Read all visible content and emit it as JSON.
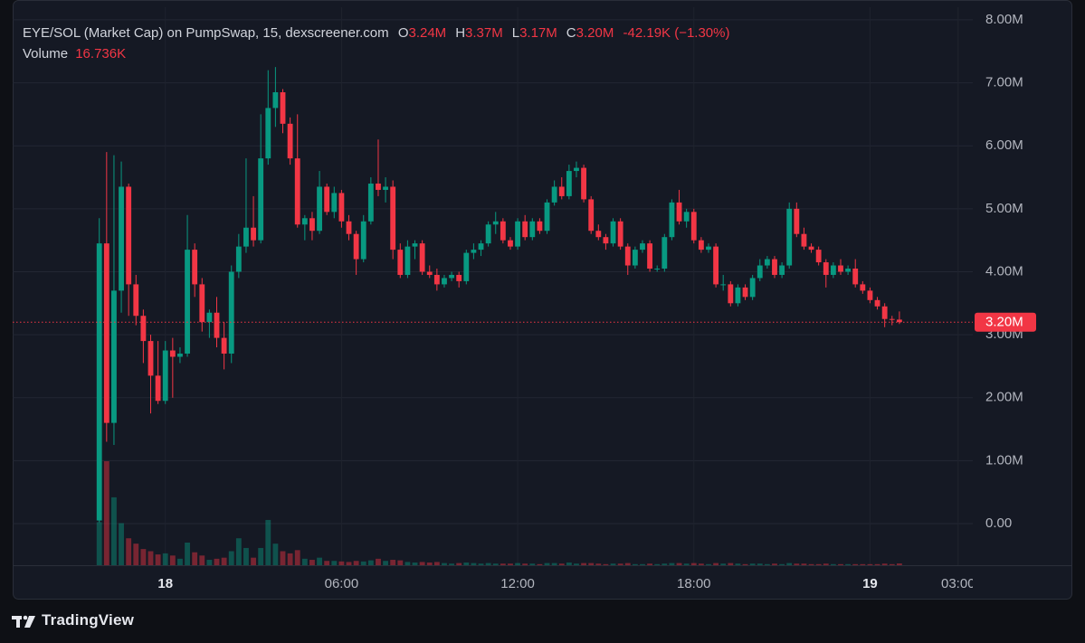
{
  "chart_data": {
    "type": "candlestick",
    "title": "EYE/SOL (Market Cap) on PumpSwap, 15, dexscreener.com",
    "ohlc_readout": [
      {
        "key": "O",
        "value": "3.24M"
      },
      {
        "key": "H",
        "value": "3.37M"
      },
      {
        "key": "L",
        "value": "3.17M"
      },
      {
        "key": "C",
        "value": "3.20M"
      }
    ],
    "change_readout": "-42.19K (−1.30%)",
    "volume_title": "Volume",
    "volume_readout": "16.736K",
    "up_color": "#089981",
    "down_color": "#f23645",
    "grid": true,
    "x": [
      -2.25,
      -2,
      -1.75,
      -1.5,
      -1.25,
      -1,
      -0.75,
      -0.5,
      -0.25,
      0,
      0.25,
      0.5,
      0.75,
      1,
      1.25,
      1.5,
      1.75,
      2,
      2.25,
      2.5,
      2.75,
      3,
      3.25,
      3.5,
      3.75,
      4,
      4.25,
      4.5,
      4.75,
      5,
      5.25,
      5.5,
      5.75,
      6,
      6.25,
      6.5,
      6.75,
      7,
      7.25,
      7.5,
      7.75,
      8,
      8.25,
      8.5,
      8.75,
      9,
      9.25,
      9.5,
      9.75,
      10,
      10.25,
      10.5,
      10.75,
      11,
      11.25,
      11.5,
      11.75,
      12,
      12.25,
      12.5,
      12.75,
      13,
      13.25,
      13.5,
      13.75,
      14,
      14.25,
      14.5,
      14.75,
      15,
      15.25,
      15.5,
      15.75,
      16,
      16.25,
      16.5,
      16.75,
      17,
      17.25,
      17.5,
      17.75,
      18,
      18.25,
      18.5,
      18.75,
      19,
      19.25,
      19.5,
      19.75,
      20,
      20.25,
      20.5,
      20.75,
      21,
      21.25,
      21.5,
      21.75,
      22,
      22.25,
      22.5,
      22.75,
      23,
      23.25,
      23.5,
      23.75,
      24,
      24.25,
      24.5,
      24.75,
      25
    ],
    "open": [
      50000,
      4450000,
      1600000,
      3700000,
      5350000,
      3800000,
      3300000,
      2900000,
      2350000,
      1950000,
      2750000,
      2650000,
      2700000,
      4350000,
      3800000,
      3200000,
      3350000,
      2950000,
      2700000,
      4000000,
      4400000,
      4700000,
      4500000,
      5800000,
      6600000,
      6850000,
      6350000,
      5800000,
      4750000,
      4850000,
      4650000,
      5350000,
      4950000,
      5250000,
      4800000,
      4600000,
      4200000,
      4800000,
      5400000,
      5300000,
      5350000,
      4350000,
      3950000,
      4400000,
      4450000,
      4000000,
      3950000,
      3800000,
      3900000,
      3950000,
      3850000,
      4300000,
      4350000,
      4450000,
      4750000,
      4800000,
      4500000,
      4400000,
      4800000,
      4550000,
      4800000,
      4650000,
      5100000,
      5350000,
      5200000,
      5600000,
      5650000,
      5150000,
      4650000,
      4550000,
      4450000,
      4800000,
      4400000,
      4100000,
      4350000,
      4450000,
      4050000,
      4050000,
      4550000,
      5100000,
      4800000,
      4950000,
      4500000,
      4350000,
      4400000,
      3800000,
      3800000,
      3500000,
      3750000,
      3600000,
      3900000,
      4100000,
      4200000,
      3950000,
      4100000,
      5000000,
      4600000,
      4400000,
      4350000,
      4150000,
      3950000,
      4100000,
      4000000,
      4050000,
      3800000,
      3700000,
      3550000,
      3450000,
      3250000,
      3240000
    ],
    "high": [
      4850000,
      5900000,
      5850000,
      5750000,
      5400000,
      3950000,
      3400000,
      3000000,
      2900000,
      2900000,
      2950000,
      2800000,
      4900000,
      4450000,
      3900000,
      3400000,
      3600000,
      3200000,
      4100000,
      4600000,
      5800000,
      5200000,
      6500000,
      7200000,
      7250000,
      6900000,
      6450000,
      6500000,
      4900000,
      4950000,
      5600000,
      5400000,
      5350000,
      5300000,
      4900000,
      4650000,
      4900000,
      5500000,
      6100000,
      5500000,
      5450000,
      4450000,
      4500000,
      4500000,
      4500000,
      4100000,
      4050000,
      3950000,
      4000000,
      4000000,
      4350000,
      4450000,
      4500000,
      4800000,
      4950000,
      4850000,
      4550000,
      4850000,
      4900000,
      4850000,
      4850000,
      5150000,
      5450000,
      5500000,
      5700000,
      5750000,
      5700000,
      5200000,
      4750000,
      4600000,
      4850000,
      4850000,
      4450000,
      4400000,
      4500000,
      4500000,
      4100000,
      4600000,
      5150000,
      5300000,
      5000000,
      5000000,
      4550000,
      4450000,
      4450000,
      3950000,
      3850000,
      3800000,
      3800000,
      3950000,
      4200000,
      4250000,
      4250000,
      4150000,
      5100000,
      5100000,
      4700000,
      4450000,
      4400000,
      4200000,
      4150000,
      4200000,
      4100000,
      4200000,
      3850000,
      3750000,
      3600000,
      3500000,
      3300000,
      3370000
    ],
    "low": [
      20000,
      1300000,
      1250000,
      3350000,
      3300000,
      3150000,
      2550000,
      1750000,
      1900000,
      1900000,
      2000000,
      2550000,
      2650000,
      3600000,
      3050000,
      2950000,
      2800000,
      2450000,
      2550000,
      3900000,
      4300000,
      4400000,
      4450000,
      5700000,
      6300000,
      6200000,
      5700000,
      4700000,
      4500000,
      4500000,
      4600000,
      4900000,
      4850000,
      4700000,
      4500000,
      3950000,
      4150000,
      4750000,
      5200000,
      5100000,
      4200000,
      3900000,
      3900000,
      4200000,
      3950000,
      3900000,
      3700000,
      3750000,
      3850000,
      3750000,
      3800000,
      4200000,
      4250000,
      4400000,
      4600000,
      4450000,
      4350000,
      4350000,
      4500000,
      4500000,
      4600000,
      4600000,
      5050000,
      5150000,
      5150000,
      5500000,
      5100000,
      4600000,
      4500000,
      4350000,
      4400000,
      4350000,
      3950000,
      4050000,
      4300000,
      4000000,
      4000000,
      4000000,
      4500000,
      4750000,
      4700000,
      4450000,
      4300000,
      4300000,
      3750000,
      3700000,
      3450000,
      3450000,
      3550000,
      3550000,
      3850000,
      4050000,
      3900000,
      3900000,
      4050000,
      4550000,
      4350000,
      4300000,
      4100000,
      3750000,
      3900000,
      3950000,
      3950000,
      3750000,
      3650000,
      3500000,
      3400000,
      3120000,
      3150000,
      3170000
    ],
    "close": [
      4450000,
      1600000,
      3700000,
      5350000,
      3800000,
      3300000,
      2900000,
      2350000,
      1950000,
      2750000,
      2650000,
      2700000,
      4350000,
      3800000,
      3200000,
      3350000,
      2950000,
      2700000,
      4000000,
      4400000,
      4700000,
      4500000,
      5800000,
      6600000,
      6850000,
      6350000,
      5800000,
      4750000,
      4850000,
      4650000,
      5350000,
      4950000,
      5250000,
      4800000,
      4600000,
      4200000,
      4800000,
      5400000,
      5300000,
      5350000,
      4350000,
      3950000,
      4400000,
      4450000,
      4000000,
      3950000,
      3800000,
      3900000,
      3950000,
      3850000,
      4300000,
      4350000,
      4450000,
      4750000,
      4800000,
      4500000,
      4400000,
      4800000,
      4550000,
      4800000,
      4650000,
      5100000,
      5350000,
      5200000,
      5600000,
      5650000,
      5150000,
      4650000,
      4550000,
      4450000,
      4800000,
      4400000,
      4100000,
      4350000,
      4450000,
      4050000,
      4050000,
      4550000,
      5100000,
      4800000,
      4950000,
      4500000,
      4350000,
      4400000,
      3800000,
      3800000,
      3500000,
      3750000,
      3600000,
      3900000,
      4100000,
      4200000,
      3950000,
      4100000,
      5000000,
      4600000,
      4400000,
      4350000,
      4150000,
      3950000,
      4100000,
      4000000,
      4050000,
      3800000,
      3700000,
      3550000,
      3450000,
      3250000,
      3240000,
      3200000
    ],
    "volume": [
      400000,
      965000,
      630000,
      390000,
      250000,
      200000,
      150000,
      130000,
      100000,
      110000,
      90000,
      60000,
      210000,
      120000,
      90000,
      50000,
      60000,
      70000,
      130000,
      250000,
      160000,
      70000,
      160000,
      420000,
      200000,
      130000,
      110000,
      140000,
      60000,
      50000,
      70000,
      40000,
      40000,
      35000,
      30000,
      40000,
      35000,
      45000,
      60000,
      40000,
      50000,
      45000,
      30000,
      25000,
      30000,
      25000,
      30000,
      20000,
      15000,
      20000,
      25000,
      20000,
      15000,
      20000,
      15000,
      15000,
      15000,
      20000,
      15000,
      15000,
      10000,
      20000,
      20000,
      15000,
      25000,
      15000,
      20000,
      20000,
      15000,
      10000,
      15000,
      15000,
      20000,
      10000,
      10000,
      15000,
      10000,
      15000,
      20000,
      20000,
      15000,
      20000,
      15000,
      10000,
      20000,
      15000,
      20000,
      15000,
      10000,
      15000,
      15000,
      10000,
      15000,
      10000,
      20000,
      15000,
      15000,
      10000,
      10000,
      15000,
      10000,
      10000,
      10000,
      10000,
      10000,
      10000,
      10000,
      15000,
      10000,
      16736
    ],
    "xlim": [
      -5.2,
      27.5
    ],
    "xticks": [
      {
        "value": 0,
        "label": "18"
      },
      {
        "value": 6,
        "label": "06:00"
      },
      {
        "value": 12,
        "label": "12:00"
      },
      {
        "value": 18,
        "label": "18:00"
      },
      {
        "value": 24,
        "label": "19"
      },
      {
        "value": 27,
        "label": "03:00"
      }
    ],
    "ylim": [
      -660000,
      8200000
    ],
    "yticks": [
      {
        "value": 0,
        "label": "0.00"
      },
      {
        "value": 1000000,
        "label": "1.00M"
      },
      {
        "value": 2000000,
        "label": "2.00M"
      },
      {
        "value": 3000000,
        "label": "3.00M"
      },
      {
        "value": 4000000,
        "label": "4.00M"
      },
      {
        "value": 5000000,
        "label": "5.00M"
      },
      {
        "value": 6000000,
        "label": "6.00M"
      },
      {
        "value": 7000000,
        "label": "7.00M"
      },
      {
        "value": 8000000,
        "label": "8.00M"
      }
    ],
    "price_line": {
      "value": 3200000,
      "label": "3.20M"
    }
  },
  "footer": {
    "brand": "TradingView"
  }
}
